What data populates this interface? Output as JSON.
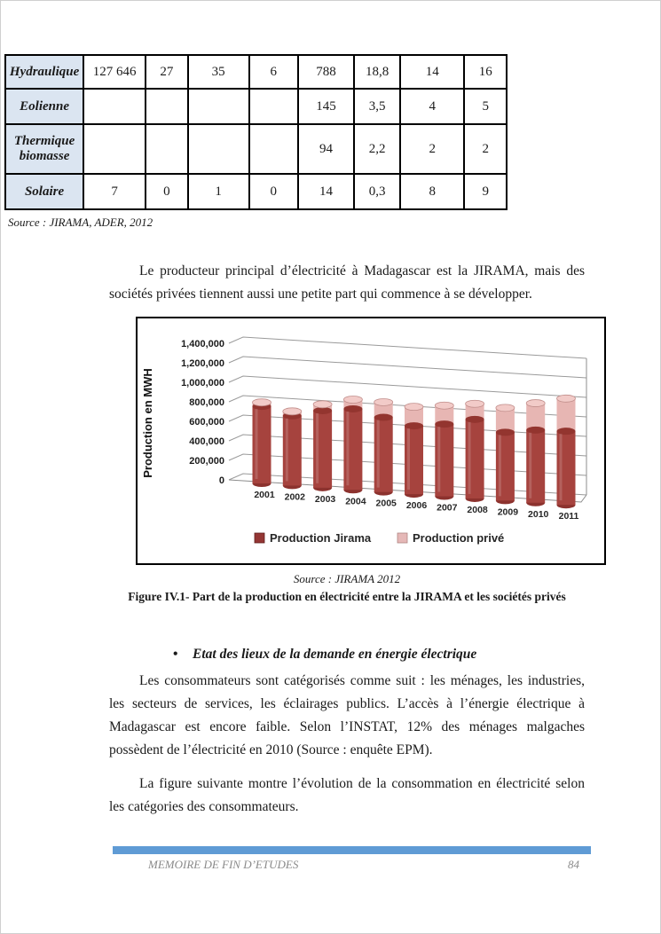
{
  "table": {
    "header_bg": "#DBE5F1",
    "rows": [
      {
        "label": "Hydraulique",
        "cells": [
          "127 646",
          "27",
          "35",
          "6",
          "788",
          "18,8",
          "14",
          "16"
        ]
      },
      {
        "label": "Eolienne",
        "cells": [
          "",
          "",
          "",
          "",
          "145",
          "3,5",
          "4",
          "5"
        ]
      },
      {
        "label": "Thermique biomasse",
        "cells": [
          "",
          "",
          "",
          "",
          "94",
          "2,2",
          "2",
          "2"
        ]
      },
      {
        "label": "Solaire",
        "cells": [
          "7",
          "0",
          "1",
          "0",
          "14",
          "0,3",
          "8",
          "9"
        ]
      }
    ],
    "source": "Source : JIRAMA, ADER, 2012"
  },
  "paragraph1": "Le producteur principal d’électricité à Madagascar est la JIRAMA, mais des sociétés privées tiennent aussi une petite part qui commence à se développer.",
  "chart_data": {
    "type": "bar",
    "style": "3d-cylinder-stacked",
    "title": "",
    "ylabel": "Production en MWH",
    "xlabel": "",
    "categories": [
      "2001",
      "2002",
      "2003",
      "2004",
      "2005",
      "2006",
      "2007",
      "2008",
      "2009",
      "2010",
      "2011"
    ],
    "series": [
      {
        "name": "Production Jirama",
        "color": "#A6433E",
        "legend_color": "#943634",
        "values": [
          790000,
          715000,
          790000,
          830000,
          765000,
          700000,
          740000,
          810000,
          700000,
          745000,
          755000
        ]
      },
      {
        "name": "Production privé",
        "color": "#E7B6B3",
        "legend_color": "#E5B8B7",
        "values": [
          40000,
          45000,
          65000,
          95000,
          155000,
          195000,
          190000,
          160000,
          250000,
          275000,
          335000
        ]
      }
    ],
    "ylim": [
      0,
      1400000
    ],
    "yticks": [
      "0",
      "200,000",
      "400,000",
      "600,000",
      "800,000",
      "1,000,000",
      "1,200,000",
      "1,400,000"
    ],
    "grid": true,
    "legend_position": "bottom"
  },
  "figure": {
    "source": "Source : JIRAMA 2012",
    "caption": "Figure IV.1- Part de la production en électricité entre la JIRAMA et les sociétés privés"
  },
  "bullet_item": {
    "glyph": "•",
    "text": "Etat des lieux de la demande en énergie électrique"
  },
  "paragraph2": "Les consommateurs sont catégorisés comme suit : les ménages, les industries, les secteurs de services, les éclairages publics. L’accès à l’énergie électrique à Madagascar est encore faible. Selon l’INSTAT, 12% des ménages malgaches possèdent de l’électricité en 2010 (Source : enquête EPM).",
  "paragraph3": "La figure suivante montre l’évolution de la consommation en électricité selon les catégories des consommateurs.",
  "footer": {
    "left": "MEMOIRE DE FIN D’ETUDES",
    "page_number": "84",
    "bar_color": "#5F9BD5"
  }
}
